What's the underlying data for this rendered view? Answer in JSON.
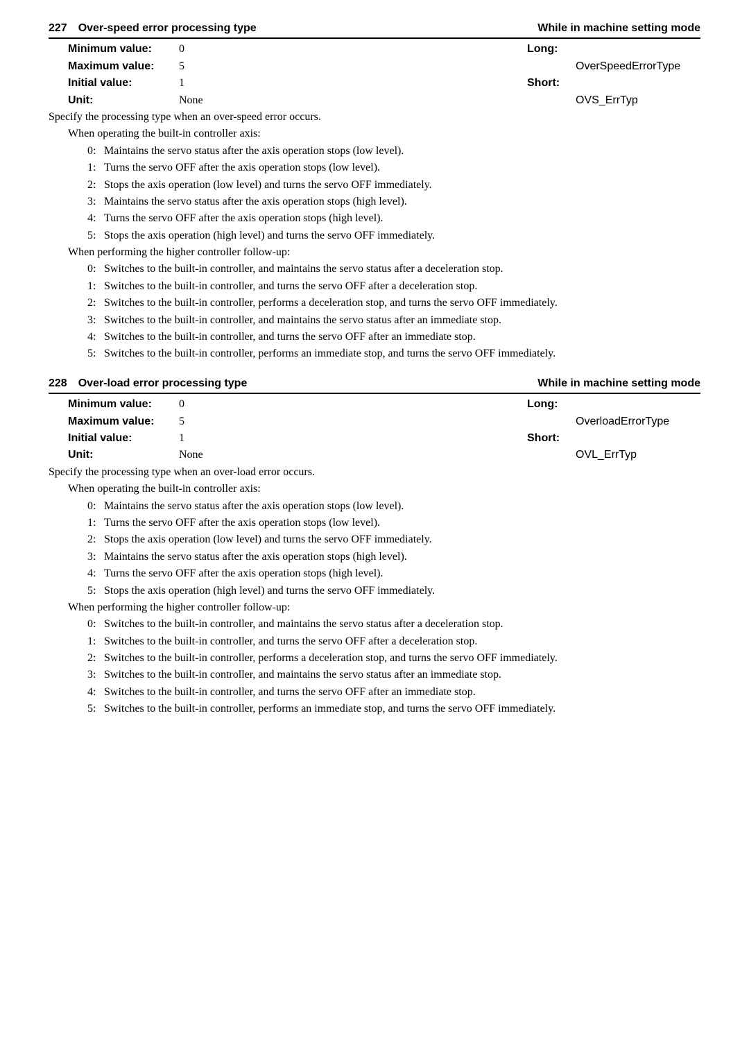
{
  "params": [
    {
      "number": "227",
      "title": "Over-speed error processing type",
      "mode": "While in machine setting mode",
      "min_label": "Minimum value:",
      "min_value": "0",
      "max_label": "Maximum value:",
      "max_value": "5",
      "initial_label": "Initial value:",
      "initial_value": "1",
      "unit_label": "Unit:",
      "unit_value": "None",
      "long_label": "Long:",
      "long_value": "OverSpeedErrorType",
      "short_label": "Short:",
      "short_value": "OVS_ErrTyp",
      "desc_main": "Specify the processing type when an over-speed error occurs.",
      "sections": [
        {
          "heading": "When operating the built-in controller axis:",
          "items": [
            {
              "num": "0:",
              "text": "Maintains the servo status after the axis operation stops (low level)."
            },
            {
              "num": "1:",
              "text": "Turns the servo OFF after the axis operation stops (low level)."
            },
            {
              "num": "2:",
              "text": "Stops the axis operation (low level) and turns the servo OFF immediately."
            },
            {
              "num": "3:",
              "text": "Maintains the servo status after the axis operation stops (high level)."
            },
            {
              "num": "4:",
              "text": "Turns the servo OFF after the axis operation stops (high level)."
            },
            {
              "num": "5:",
              "text": "Stops the axis operation (high level) and turns the servo OFF immediately."
            }
          ]
        },
        {
          "heading": "When performing the higher controller follow-up:",
          "items": [
            {
              "num": "0:",
              "text": "Switches to the built-in controller, and maintains the servo status after a deceleration stop."
            },
            {
              "num": "1:",
              "text": "Switches to the built-in controller, and turns the servo OFF after a deceleration stop."
            },
            {
              "num": "2:",
              "text": "Switches to the built-in controller, performs a deceleration stop, and turns the servo OFF immediately."
            },
            {
              "num": "3:",
              "text": "Switches to the built-in controller, and maintains the servo status after an immediate stop."
            },
            {
              "num": "4:",
              "text": "Switches to the built-in controller, and turns the servo OFF after an immediate stop."
            },
            {
              "num": "5:",
              "text": "Switches to the built-in controller, performs an immediate stop, and turns the servo OFF immediately."
            }
          ]
        }
      ]
    },
    {
      "number": "228",
      "title": "Over-load error processing type",
      "mode": "While in machine setting mode",
      "min_label": "Minimum value:",
      "min_value": "0",
      "max_label": "Maximum value:",
      "max_value": "5",
      "initial_label": "Initial value:",
      "initial_value": "1",
      "unit_label": "Unit:",
      "unit_value": "None",
      "long_label": "Long:",
      "long_value": "OverloadErrorType",
      "short_label": "Short:",
      "short_value": "OVL_ErrTyp",
      "desc_main": "Specify the processing type when an over-load error occurs.",
      "sections": [
        {
          "heading": "When operating the built-in controller axis:",
          "items": [
            {
              "num": "0:",
              "text": "Maintains the servo status after the axis operation stops (low level)."
            },
            {
              "num": "1:",
              "text": "Turns the servo OFF after the axis operation stops (low level)."
            },
            {
              "num": "2:",
              "text": "Stops the axis operation (low level) and turns the servo OFF immediately."
            },
            {
              "num": "3:",
              "text": "Maintains the servo status after the axis operation stops (high level)."
            },
            {
              "num": "4:",
              "text": "Turns the servo OFF after the axis operation stops (high level)."
            },
            {
              "num": "5:",
              "text": "Stops the axis operation (high level) and turns the servo OFF immediately."
            }
          ]
        },
        {
          "heading": "When performing the higher controller follow-up:",
          "items": [
            {
              "num": "0:",
              "text": "Switches to the built-in controller, and maintains the servo status after a deceleration stop."
            },
            {
              "num": "1:",
              "text": "Switches to the built-in controller, and turns the servo OFF after a deceleration stop."
            },
            {
              "num": "2:",
              "text": "Switches to the built-in controller, performs a deceleration stop, and turns the servo OFF immediately."
            },
            {
              "num": "3:",
              "text": "Switches to the built-in controller, and maintains the servo status after an immediate stop."
            },
            {
              "num": "4:",
              "text": "Switches to the built-in controller, and turns the servo OFF after an immediate stop."
            },
            {
              "num": "5:",
              "text": "Switches to the built-in controller, performs an immediate stop, and turns the servo OFF immediately."
            }
          ]
        }
      ]
    }
  ]
}
